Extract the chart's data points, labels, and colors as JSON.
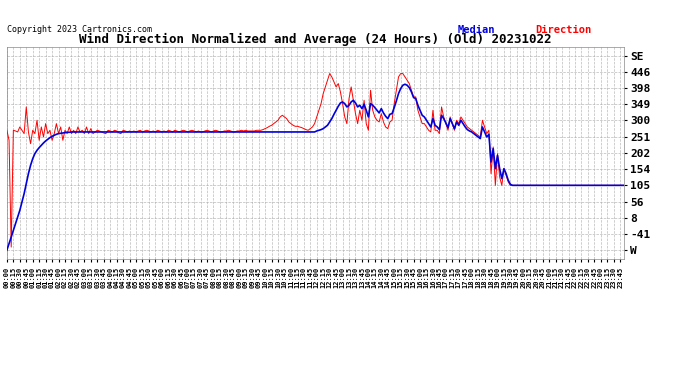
{
  "title": "Wind Direction Normalized and Average (24 Hours) (Old) 20231022",
  "copyright": "Copyright 2023 Cartronics.com",
  "legend_median_text": "Median",
  "legend_direction_text": "Direction",
  "background_color": "#ffffff",
  "grid_color": "#aaaaaa",
  "ytick_labels": [
    "SE",
    "446",
    "398",
    "349",
    "300",
    "251",
    "202",
    "154",
    "105",
    "56",
    "8",
    "-41",
    "W"
  ],
  "ytick_values": [
    494,
    446,
    398,
    349,
    300,
    251,
    202,
    154,
    105,
    56,
    8,
    -41,
    -89
  ],
  "ylim": [
    -115,
    520
  ],
  "red_line_color": "#ff0000",
  "blue_line_color": "#0000dd",
  "time_points": 288,
  "red_data": [
    270,
    240,
    -80,
    270,
    268,
    265,
    280,
    270,
    260,
    340,
    265,
    230,
    270,
    260,
    300,
    240,
    280,
    250,
    290,
    260,
    270,
    240,
    260,
    290,
    260,
    280,
    240,
    270,
    260,
    280,
    260,
    270,
    260,
    280,
    265,
    270,
    260,
    280,
    260,
    275,
    260,
    265,
    270,
    268,
    265,
    262,
    260,
    270,
    268,
    265,
    270,
    268,
    262,
    260,
    270,
    268,
    265,
    268,
    265,
    268,
    265,
    268,
    270,
    265,
    268,
    270,
    268,
    265,
    268,
    265,
    270,
    268,
    265,
    268,
    265,
    270,
    268,
    265,
    270,
    268,
    265,
    268,
    270,
    268,
    265,
    268,
    270,
    268,
    265,
    268,
    265,
    265,
    268,
    270,
    268,
    265,
    268,
    270,
    268,
    265,
    265,
    268,
    268,
    270,
    268,
    265,
    265,
    268,
    268,
    270,
    268,
    270,
    268,
    268,
    268,
    268,
    270,
    270,
    270,
    272,
    275,
    278,
    282,
    285,
    290,
    295,
    300,
    310,
    315,
    310,
    305,
    295,
    290,
    285,
    282,
    282,
    280,
    278,
    275,
    272,
    270,
    275,
    280,
    290,
    310,
    330,
    350,
    380,
    400,
    420,
    440,
    430,
    415,
    400,
    410,
    385,
    350,
    310,
    290,
    365,
    400,
    360,
    320,
    290,
    330,
    300,
    360,
    290,
    270,
    390,
    330,
    310,
    300,
    295,
    320,
    295,
    280,
    275,
    295,
    300,
    350,
    390,
    430,
    440,
    440,
    430,
    420,
    410,
    390,
    370,
    370,
    330,
    310,
    290,
    290,
    280,
    270,
    265,
    330,
    270,
    270,
    260,
    340,
    310,
    290,
    270,
    310,
    290,
    270,
    300,
    290,
    310,
    300,
    290,
    280,
    275,
    270,
    265,
    260,
    255,
    250,
    300,
    280,
    260,
    270,
    140,
    220,
    105,
    200,
    130,
    105,
    155,
    135,
    115,
    105,
    105,
    105,
    105,
    105,
    105,
    105,
    105,
    105,
    105,
    105,
    105,
    105,
    105,
    105,
    105,
    105,
    105,
    105,
    105,
    105,
    105,
    105,
    105,
    105,
    105,
    105,
    105,
    105,
    105,
    105,
    105,
    105,
    105,
    105,
    105,
    105,
    105,
    105,
    105,
    105,
    105,
    105,
    105,
    105,
    105,
    105,
    105,
    105,
    105,
    105,
    105,
    105,
    105
  ],
  "blue_data": [
    -89,
    -70,
    -50,
    -30,
    -10,
    10,
    30,
    55,
    80,
    110,
    140,
    165,
    185,
    200,
    210,
    218,
    225,
    232,
    238,
    243,
    248,
    252,
    255,
    258,
    260,
    261,
    262,
    263,
    264,
    264,
    265,
    265,
    265,
    265,
    265,
    265,
    265,
    265,
    265,
    265,
    265,
    265,
    265,
    265,
    265,
    265,
    265,
    265,
    265,
    265,
    265,
    265,
    265,
    265,
    265,
    265,
    265,
    265,
    265,
    265,
    265,
    265,
    265,
    265,
    265,
    265,
    265,
    265,
    265,
    265,
    265,
    265,
    265,
    265,
    265,
    265,
    265,
    265,
    265,
    265,
    265,
    265,
    265,
    265,
    265,
    265,
    265,
    265,
    265,
    265,
    265,
    265,
    265,
    265,
    265,
    265,
    265,
    265,
    265,
    265,
    265,
    265,
    265,
    265,
    265,
    265,
    265,
    265,
    265,
    265,
    265,
    265,
    265,
    265,
    265,
    265,
    265,
    265,
    265,
    265,
    265,
    265,
    265,
    265,
    265,
    265,
    265,
    265,
    265,
    265,
    265,
    265,
    265,
    265,
    265,
    265,
    265,
    265,
    265,
    265,
    265,
    265,
    265,
    265,
    268,
    270,
    272,
    275,
    280,
    285,
    295,
    305,
    318,
    330,
    342,
    352,
    355,
    350,
    340,
    345,
    355,
    360,
    352,
    340,
    345,
    335,
    348,
    330,
    310,
    350,
    345,
    338,
    330,
    322,
    335,
    322,
    312,
    305,
    318,
    320,
    338,
    358,
    380,
    395,
    405,
    408,
    405,
    398,
    385,
    368,
    365,
    345,
    330,
    315,
    310,
    300,
    290,
    280,
    305,
    285,
    280,
    272,
    315,
    305,
    292,
    278,
    305,
    290,
    275,
    295,
    285,
    300,
    290,
    280,
    272,
    268,
    265,
    260,
    255,
    250,
    245,
    280,
    265,
    250,
    258,
    175,
    215,
    155,
    195,
    155,
    125,
    155,
    140,
    120,
    108,
    105,
    105,
    105,
    105,
    105,
    105,
    105,
    105,
    105,
    105,
    105,
    105,
    105,
    105,
    105,
    105,
    105,
    105,
    105,
    105,
    105,
    105,
    105,
    105,
    105,
    105,
    105,
    105,
    105,
    105,
    105,
    105,
    105,
    105,
    105,
    105,
    105,
    105,
    105,
    105,
    105,
    105,
    105,
    105,
    105,
    105,
    105,
    105,
    105,
    105,
    105,
    105,
    105
  ]
}
